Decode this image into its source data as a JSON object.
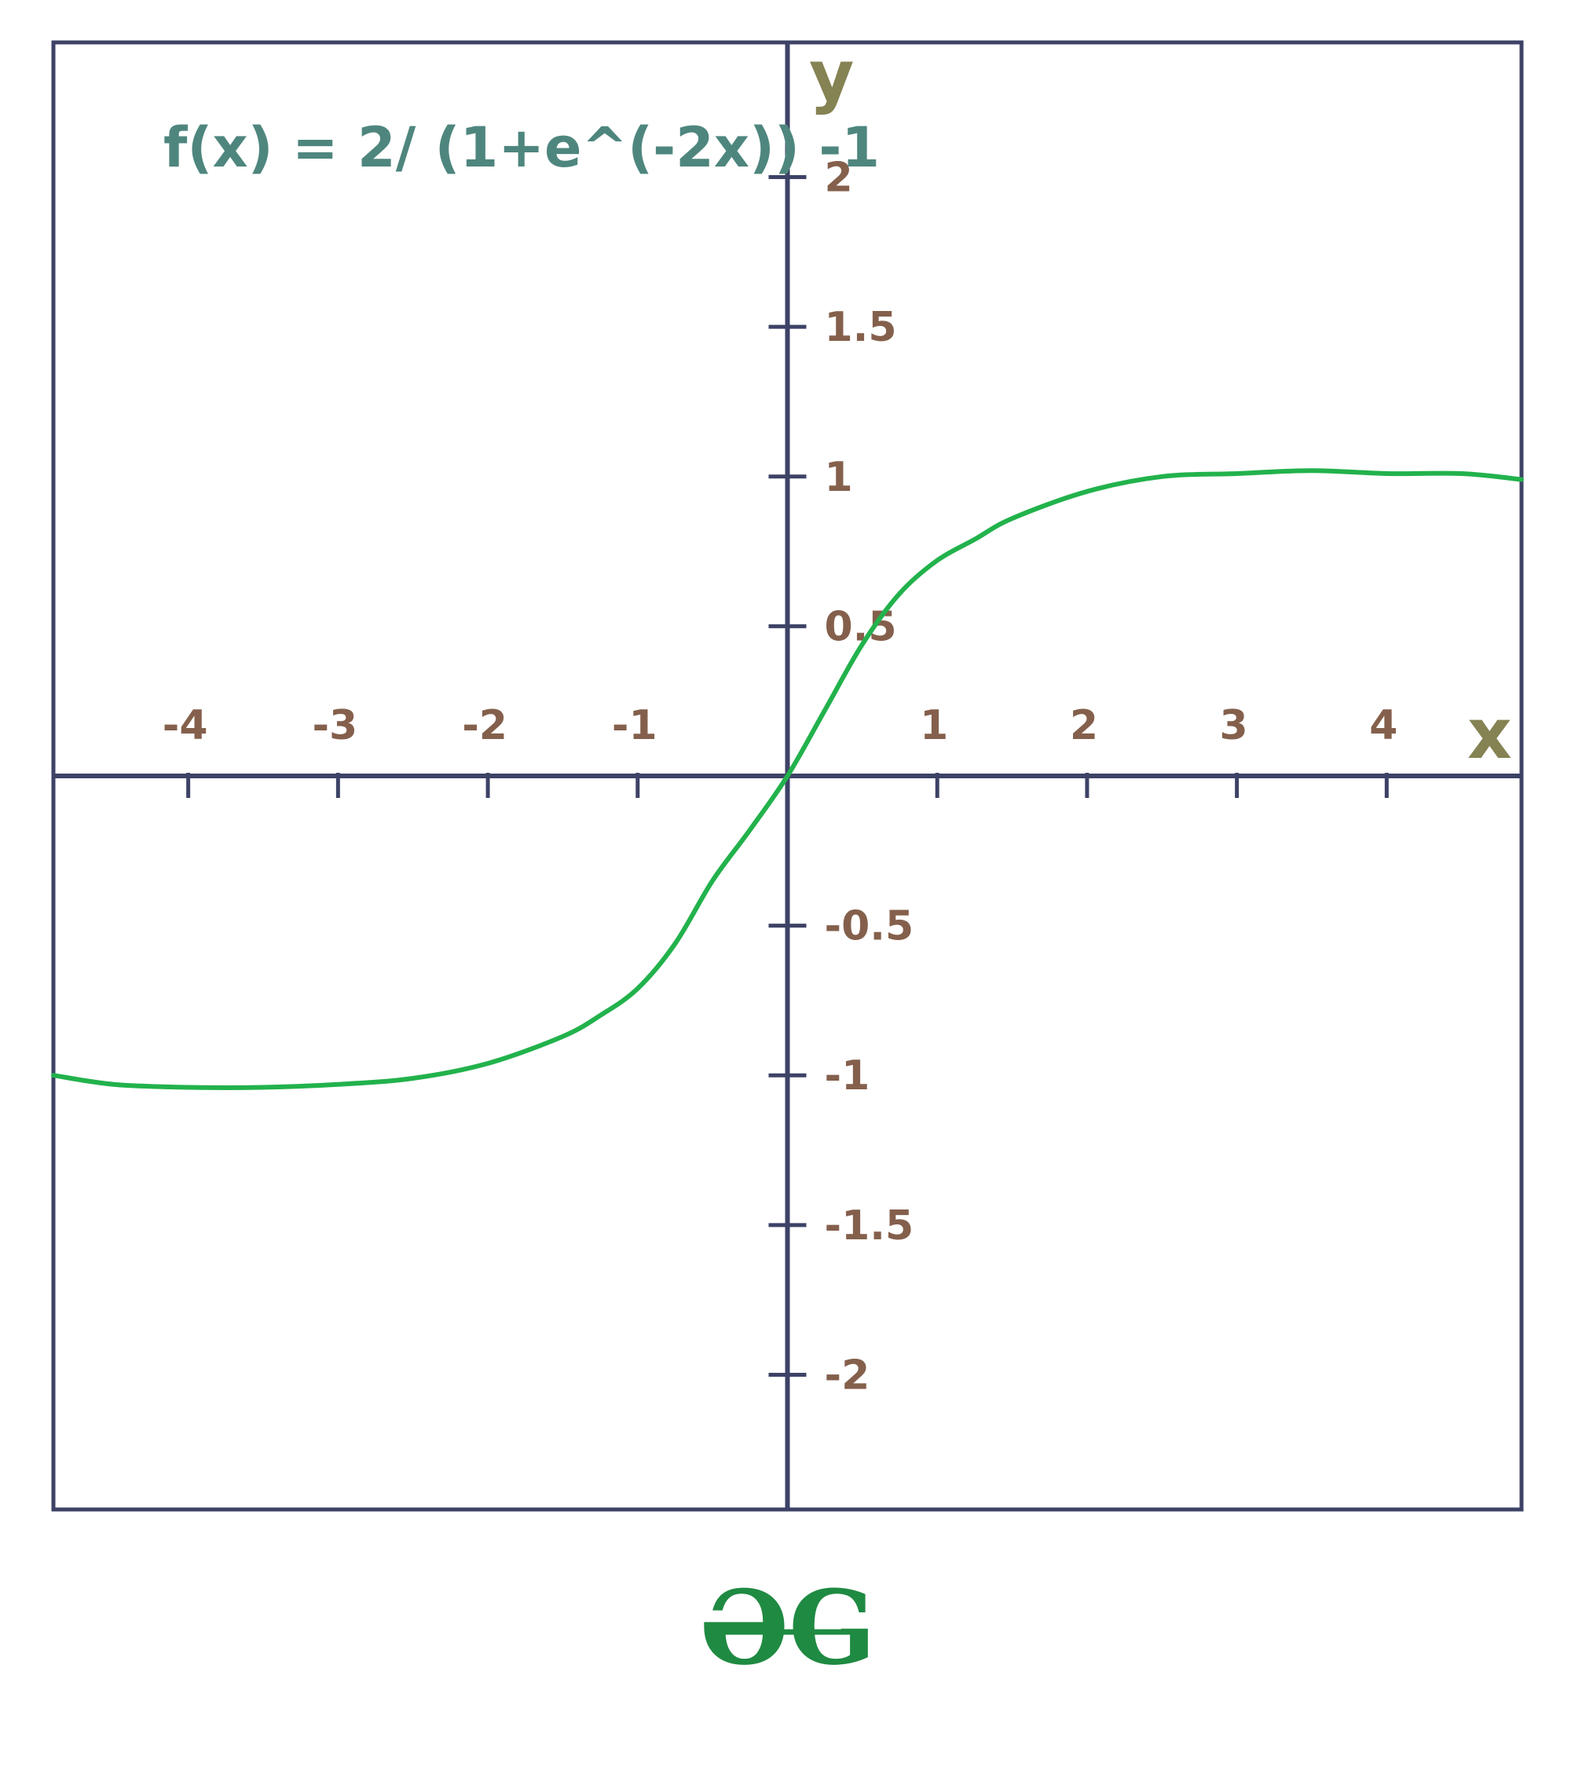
{
  "chart_data": {
    "type": "line",
    "title": "f(x) = 2/ (1+e^(-2x)) -1",
    "xlabel": "x",
    "ylabel": "y",
    "xlim": [
      -4.9,
      4.9
    ],
    "ylim": [
      -2.45,
      2.45
    ],
    "x_ticks": [
      -4,
      -3,
      -2,
      -1,
      1,
      2,
      3,
      4
    ],
    "x_tick_labels": [
      "-4",
      "-3",
      "-2",
      "-1",
      "1",
      "2",
      "3",
      "4"
    ],
    "y_ticks": [
      2,
      1.5,
      1,
      0.5,
      -0.5,
      -1,
      -1.5,
      -2
    ],
    "y_tick_labels": [
      "2",
      "1.5",
      "1",
      "0.5",
      "-0.5",
      "-1",
      "-1.5",
      "-2"
    ],
    "grid": false,
    "series": [
      {
        "color": "#22b24c",
        "x": [
          -4.9,
          -4.5,
          -4.0,
          -3.5,
          -3.0,
          -2.5,
          -2.0,
          -1.5,
          -1.25,
          -1.0,
          -0.75,
          -0.5,
          -0.25,
          0.0,
          0.25,
          0.5,
          0.75,
          1.0,
          1.25,
          1.5,
          2.0,
          2.5,
          3.0,
          3.5,
          4.0,
          4.5,
          4.9
        ],
        "y": [
          -1.0,
          -1.03,
          -1.04,
          -1.04,
          -1.03,
          -1.01,
          -0.96,
          -0.87,
          -0.8,
          -0.71,
          -0.56,
          -0.35,
          -0.18,
          0.0,
          0.22,
          0.44,
          0.61,
          0.72,
          0.79,
          0.86,
          0.95,
          1.0,
          1.01,
          1.02,
          1.01,
          1.01,
          0.99
        ]
      }
    ]
  },
  "logo": {
    "text": "ƏG"
  }
}
